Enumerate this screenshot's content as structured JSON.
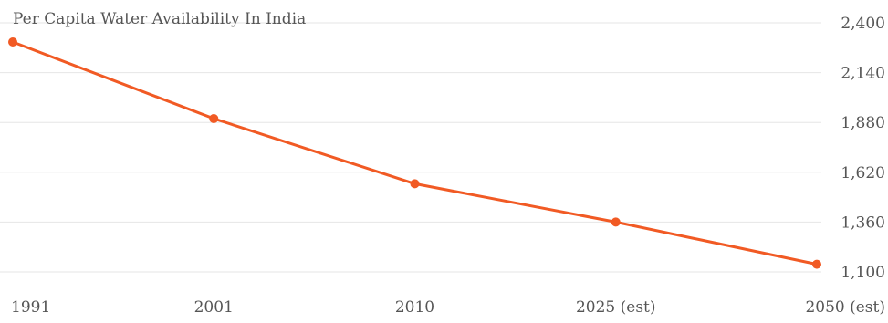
{
  "chart_data": {
    "type": "line",
    "title": "Per Capita Water Availability In India",
    "xlabel": "",
    "ylabel": "",
    "categories": [
      "1991",
      "2001",
      "2010",
      "2025 (est)",
      "2050 (est)"
    ],
    "series": [
      {
        "values": [
          2300,
          1900,
          1560,
          1360,
          1140
        ]
      }
    ],
    "ylim": [
      1100,
      2400
    ],
    "yticks": [
      2400,
      2140,
      1880,
      1620,
      1360,
      1100
    ],
    "ytick_labels": [
      "2,400",
      "2,140",
      "1,880",
      "1,620",
      "1,360",
      "1,100"
    ],
    "y_axis_position": "right",
    "grid": true,
    "legend": "none",
    "colors": {
      "series": "#f15a24",
      "grid": "#e6e6e6",
      "text": "#555555"
    }
  }
}
